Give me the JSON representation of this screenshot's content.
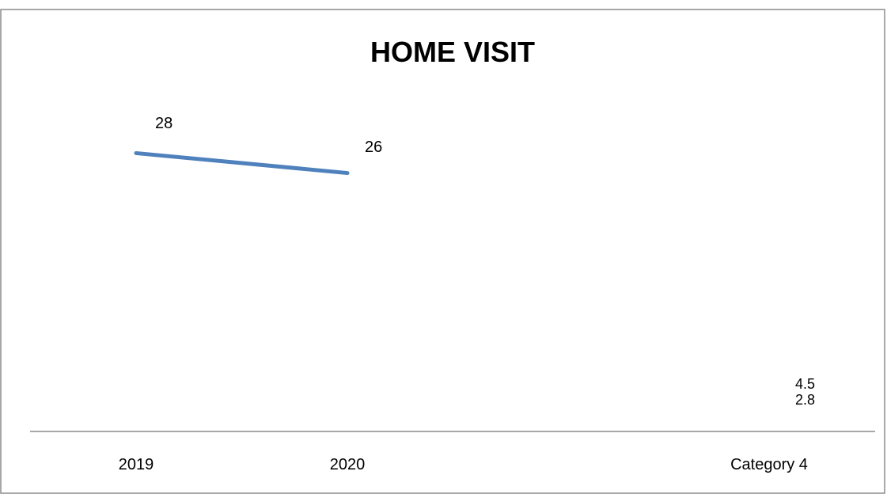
{
  "chart_data": {
    "type": "line",
    "title": "HOME VISIT",
    "categories": [
      "2019",
      "2020",
      "Category 4"
    ],
    "series": [
      {
        "values": [
          28,
          26,
          null
        ],
        "color": "#4f81bd"
      }
    ],
    "extra_data_labels": {
      "category": "Category 4",
      "values": [
        4.5,
        2.8
      ]
    },
    "xlabel": "",
    "ylabel": "",
    "ylim": [
      0,
      36
    ],
    "grid": false,
    "legend": "none"
  }
}
